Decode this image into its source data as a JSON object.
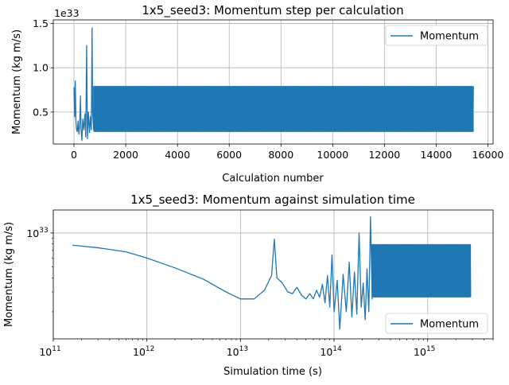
{
  "chart_data": [
    {
      "type": "line",
      "title": "1x5_seed3: Momentum step per calculation",
      "xlabel": "Calculation number",
      "ylabel": "Momentum (kg m/s)",
      "y_offset_label": "1e33",
      "xlim": [
        -800,
        16200
      ],
      "ylim": [
        1.4e+32,
        1.54e+33
      ],
      "x_ticks": [
        0,
        2000,
        4000,
        6000,
        8000,
        10000,
        12000,
        14000,
        16000
      ],
      "x_tick_labels": [
        "0",
        "2000",
        "4000",
        "6000",
        "8000",
        "10000",
        "12000",
        "14000",
        "16000"
      ],
      "y_ticks": [
        0.5,
        1.0,
        1.5
      ],
      "y_tick_labels": [
        "0.5",
        "1.0",
        "1.5"
      ],
      "grid": true,
      "legend_position": "upper right",
      "series": [
        {
          "name": "Momentum",
          "color": "#1f77b4",
          "early_points": [
            [
              0,
              7.8e+32
            ],
            [
              25,
              4.5e+32
            ],
            [
              50,
              8.5e+32
            ],
            [
              75,
              4e+32
            ],
            [
              100,
              3e+32
            ],
            [
              130,
              2.8e+32
            ],
            [
              160,
              4e+32
            ],
            [
              190,
              2.5e+32
            ],
            [
              220,
              3.5e+32
            ],
            [
              250,
              6.8e+32
            ],
            [
              275,
              3e+32
            ],
            [
              305,
              1.8e+32
            ],
            [
              340,
              4.2e+32
            ],
            [
              380,
              3e+32
            ],
            [
              420,
              4.8e+32
            ],
            [
              455,
              2.2e+32
            ],
            [
              490,
              1.25e+33
            ],
            [
              520,
              2e+32
            ],
            [
              560,
              5e+32
            ],
            [
              600,
              2.7e+32
            ],
            [
              640,
              4.5e+32
            ],
            [
              670,
              3e+32
            ],
            [
              700,
              1.45e+33
            ],
            [
              720,
              5e+32
            ],
            [
              760,
              3e+32
            ]
          ],
          "oscillation": {
            "x_start": 760,
            "x_end": 15450,
            "y_high": 7.9e+32,
            "y_low": 2.8e+32
          }
        }
      ]
    },
    {
      "type": "line",
      "title": "1x5_seed3: Momentum against simulation time",
      "xlabel": "Simulation time (s)",
      "ylabel": "Momentum (kg m/s)",
      "x_scale": "log",
      "y_scale": "log",
      "xlim": [
        100000000000.0,
        5000000000000000.0
      ],
      "ylim": [
        1.15e+32,
        1.6e+33
      ],
      "x_ticks": [
        100000000000.0,
        1000000000000.0,
        10000000000000.0,
        100000000000000.0,
        1000000000000000.0
      ],
      "x_tick_labels": [
        [
          "10",
          "11"
        ],
        [
          "10",
          "12"
        ],
        [
          "10",
          "13"
        ],
        [
          "10",
          "14"
        ],
        [
          "10",
          "15"
        ]
      ],
      "y_ticks": [
        1e+33
      ],
      "y_tick_labels": [
        [
          "10",
          "33"
        ]
      ],
      "grid": true,
      "legend_position": "lower right",
      "series": [
        {
          "name": "Momentum",
          "color": "#1f77b4",
          "early_points": [
            [
              160000000000.0,
              7.8e+32
            ],
            [
              300000000000.0,
              7.4e+32
            ],
            [
              600000000000.0,
              6.8e+32
            ],
            [
              1000000000000.0,
              6e+32
            ],
            [
              2000000000000.0,
              4.9e+32
            ],
            [
              4000000000000.0,
              3.9e+32
            ],
            [
              7000000000000.0,
              3e+32
            ],
            [
              10000000000000.0,
              2.6e+32
            ],
            [
              14000000000000.0,
              2.6e+32
            ],
            [
              18000000000000.0,
              3.1e+32
            ],
            [
              21500000000000.0,
              4.2e+32
            ],
            [
              23000000000000.0,
              8.8e+32
            ],
            [
              24500000000000.0,
              4e+32
            ],
            [
              28000000000000.0,
              3.6e+32
            ],
            [
              32000000000000.0,
              3e+32
            ],
            [
              36000000000000.0,
              2.9e+32
            ],
            [
              40000000000000.0,
              3.3e+32
            ],
            [
              45000000000000.0,
              2.8e+32
            ],
            [
              50000000000000.0,
              2.6e+32
            ],
            [
              55000000000000.0,
              2.9e+32
            ],
            [
              60000000000000.0,
              2.6e+32
            ],
            [
              65000000000000.0,
              3.1e+32
            ],
            [
              70000000000000.0,
              2.7e+32
            ],
            [
              75000000000000.0,
              3.5e+32
            ],
            [
              80000000000000.0,
              2.4e+32
            ],
            [
              85000000000000.0,
              4.2e+32
            ],
            [
              90000000000000.0,
              2.2e+32
            ],
            [
              95000000000000.0,
              6.4e+32
            ],
            [
              100000000000000.0,
              2e+32
            ],
            [
              108000000000000.0,
              3.8e+32
            ],
            [
              115000000000000.0,
              1.4e+32
            ],
            [
              125000000000000.0,
              4.3e+32
            ],
            [
              135000000000000.0,
              2e+32
            ],
            [
              145000000000000.0,
              5.5e+32
            ],
            [
              155000000000000.0,
              1.8e+32
            ],
            [
              165000000000000.0,
              4.5e+32
            ],
            [
              175000000000000.0,
              1.9e+32
            ],
            [
              185000000000000.0,
              1e+33
            ],
            [
              195000000000000.0,
              2.2e+32
            ],
            [
              205000000000000.0,
              3.6e+32
            ],
            [
              215000000000000.0,
              1.7e+32
            ],
            [
              225000000000000.0,
              4.8e+32
            ],
            [
              235000000000000.0,
              2e+32
            ],
            [
              245000000000000.0,
              1.4e+33
            ],
            [
              255000000000000.0,
              2.6e+32
            ]
          ],
          "oscillation": {
            "x_start": 255000000000000.0,
            "x_end": 2900000000000000.0,
            "y_high": 7.9e+32,
            "y_low": 2.7e+32
          }
        }
      ]
    }
  ]
}
